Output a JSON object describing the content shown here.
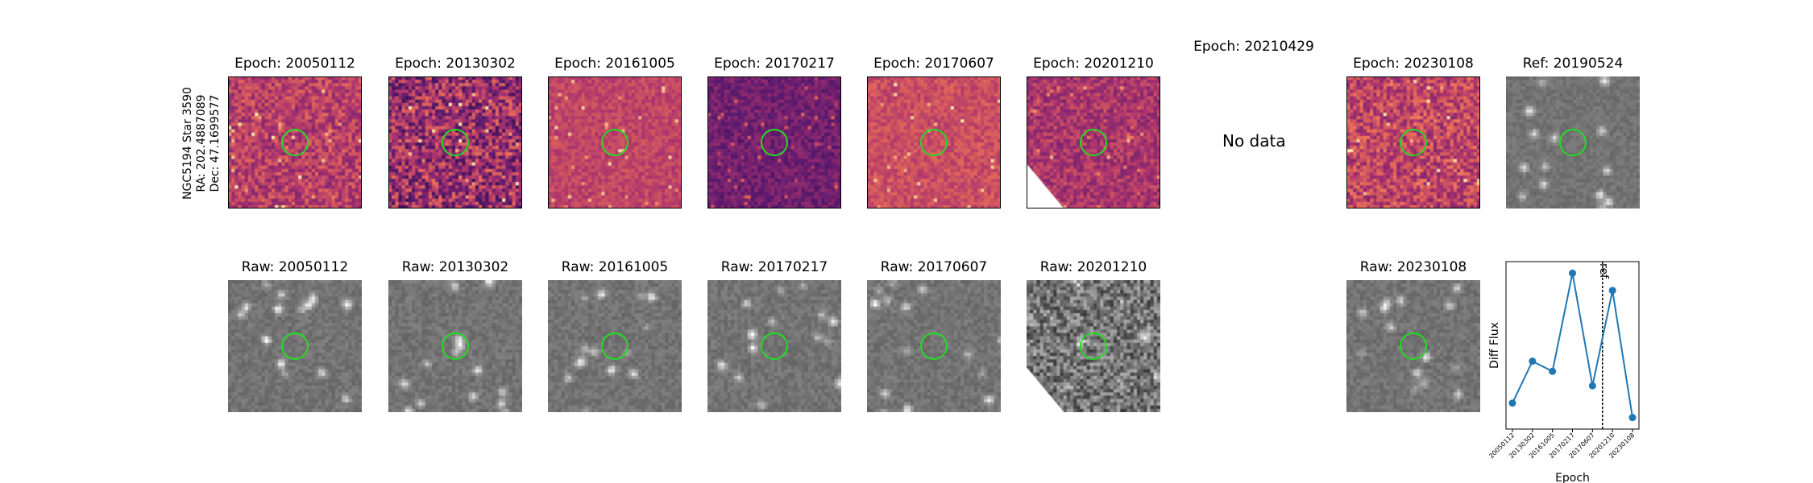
{
  "star_label": [
    "NGC5194 Star 3590",
    "RA: 202.4887089",
    "Dec: 47.1699577"
  ],
  "diff_panels": [
    {
      "title": "Epoch: 20050112",
      "palette": "magma",
      "seed": 11
    },
    {
      "title": "Epoch: 20130302",
      "palette": "magma",
      "seed": 23
    },
    {
      "title": "Epoch: 20161005",
      "palette": "magma",
      "seed": 37
    },
    {
      "title": "Epoch: 20170217",
      "palette": "magma",
      "seed": 41
    },
    {
      "title": "Epoch: 20170607",
      "palette": "magma",
      "seed": 53
    },
    {
      "title": "Epoch: 20201210",
      "palette": "magma",
      "seed": 67
    },
    {
      "title": "Epoch: 20210429",
      "missing": true,
      "missing_text": "No data"
    },
    {
      "title": "Epoch: 20230108",
      "palette": "magma",
      "seed": 79
    },
    {
      "title": "Ref: 20190524",
      "palette": "gray",
      "seed": 83
    }
  ],
  "raw_panels": [
    {
      "title": "Raw: 20050112",
      "seed": 101
    },
    {
      "title": "Raw: 20130302",
      "seed": 103
    },
    {
      "title": "Raw: 20161005",
      "seed": 107
    },
    {
      "title": "Raw: 20170217",
      "seed": 109
    },
    {
      "title": "Raw: 20170607",
      "seed": 113
    },
    {
      "title": "Raw: 20201210",
      "seed": 127
    },
    {
      "title": "Raw: 20230108",
      "seed": 131
    }
  ],
  "colors": {
    "ring": "#22dd22",
    "line": "#1f77b4"
  },
  "chart_data": {
    "type": "line",
    "xlabel": "Epoch",
    "ylabel": "Diff Flux",
    "categories": [
      "20050112",
      "20130302",
      "20161005",
      "20170217",
      "20170607",
      "20201210",
      "20230108"
    ],
    "values": [
      0.1,
      0.39,
      0.32,
      1.0,
      0.22,
      0.88,
      0.0
    ],
    "ylim": [
      -0.08,
      1.08
    ],
    "ref_line": {
      "label": "ref",
      "position_between": [
        "20170607",
        "20201210"
      ]
    },
    "grid": false
  }
}
